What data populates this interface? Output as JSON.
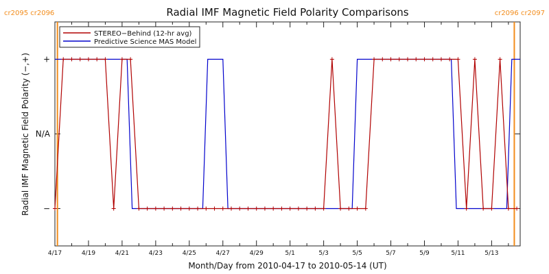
{
  "chart_data": {
    "type": "line",
    "title": "Radial IMF Magnetic Field Polarity Comparisons",
    "ylabel": "Radial IMF Magnetic Field Polarity (−,+)",
    "xlabel": "Month/Day from 2010-04-17 to 2010-05-14 (UT)",
    "xlim": [
      0,
      27.7
    ],
    "ylim": [
      -1.5,
      1.5
    ],
    "y_ticks": [
      {
        "value": 1,
        "label": "+"
      },
      {
        "value": 0,
        "label": "N/A"
      },
      {
        "value": -1,
        "label": "−"
      }
    ],
    "x_ticks": [
      {
        "value": 0,
        "label": "4/17"
      },
      {
        "value": 2,
        "label": "4/19"
      },
      {
        "value": 4,
        "label": "4/21"
      },
      {
        "value": 6,
        "label": "4/23"
      },
      {
        "value": 8,
        "label": "4/25"
      },
      {
        "value": 10,
        "label": "4/27"
      },
      {
        "value": 12,
        "label": "4/29"
      },
      {
        "value": 14,
        "label": "5/1"
      },
      {
        "value": 16,
        "label": "5/3"
      },
      {
        "value": 18,
        "label": "5/5"
      },
      {
        "value": 20,
        "label": "5/7"
      },
      {
        "value": 22,
        "label": "5/9"
      },
      {
        "value": 24,
        "label": "5/11"
      },
      {
        "value": 26,
        "label": "5/13"
      }
    ],
    "carrington_markers": [
      {
        "x": 0.15,
        "label": "cr2095 cr2096",
        "label_side": "left"
      },
      {
        "x": 27.35,
        "label": "cr2096 cr2097",
        "label_side": "right"
      }
    ],
    "legend_position": "top-left",
    "grid": false,
    "series": [
      {
        "name": "STEREO−Behind (12-hr avg)",
        "color": "#b00000",
        "markers": true,
        "x": [
          0,
          0.5,
          1.0,
          1.5,
          2.0,
          2.5,
          3.0,
          3.5,
          4.0,
          4.5,
          5.0,
          5.5,
          6.0,
          6.5,
          7.0,
          7.5,
          8.0,
          8.5,
          9.0,
          9.5,
          10.0,
          10.5,
          11.0,
          11.5,
          12.0,
          12.5,
          13.0,
          13.5,
          14.0,
          14.5,
          15.0,
          15.5,
          16.0,
          16.5,
          17.0,
          17.5,
          18.0,
          18.5,
          19.0,
          19.5,
          20.0,
          20.5,
          21.0,
          21.5,
          22.0,
          22.5,
          23.0,
          23.5,
          24.0,
          24.5,
          25.0,
          25.5,
          26.0,
          26.5,
          27.0,
          27.5
        ],
        "y": [
          -1,
          1,
          1,
          1,
          1,
          1,
          1,
          -1,
          1,
          1,
          -1,
          -1,
          -1,
          -1,
          -1,
          -1,
          -1,
          -1,
          -1,
          -1,
          -1,
          -1,
          -1,
          -1,
          -1,
          -1,
          -1,
          -1,
          -1,
          -1,
          -1,
          -1,
          -1,
          1,
          -1,
          -1,
          -1,
          -1,
          1,
          1,
          1,
          1,
          1,
          1,
          1,
          1,
          1,
          1,
          1,
          -1,
          1,
          -1,
          -1,
          1,
          -1,
          -1
        ]
      },
      {
        "name": "Predictive Science MAS Model",
        "color": "#0000cc",
        "markers": false,
        "x": [
          0,
          4.3,
          4.6,
          8.8,
          9.1,
          10.0,
          10.3,
          17.7,
          18.0,
          23.6,
          23.9,
          26.9,
          27.2,
          27.7
        ],
        "y": [
          1,
          1,
          -1,
          -1,
          1,
          1,
          -1,
          -1,
          1,
          1,
          -1,
          -1,
          1,
          1
        ]
      }
    ]
  }
}
